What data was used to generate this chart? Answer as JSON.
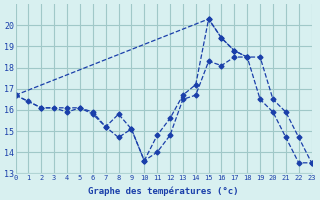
{
  "xlabel": "Graphe des températures (°c)",
  "background_color": "#d8f0f0",
  "grid_color": "#a0c8c8",
  "line_color": "#1a3faa",
  "xlim": [
    0,
    23
  ],
  "ylim": [
    13,
    21
  ],
  "yticks": [
    13,
    14,
    15,
    16,
    17,
    18,
    19,
    20
  ],
  "xticks": [
    0,
    1,
    2,
    3,
    4,
    5,
    6,
    7,
    8,
    9,
    10,
    11,
    12,
    13,
    14,
    15,
    16,
    17,
    18,
    19,
    20,
    21,
    22,
    23
  ],
  "series": [
    {
      "x": [
        0,
        1,
        2,
        3,
        4,
        5,
        6,
        7,
        8,
        9,
        10,
        11,
        12,
        13,
        14,
        15,
        16,
        17,
        18,
        19,
        20,
        21,
        22,
        23
      ],
      "y": [
        16.7,
        16.4,
        16.1,
        16.1,
        15.9,
        16.1,
        15.8,
        15.2,
        14.7,
        15.1,
        13.6,
        14.0,
        14.8,
        16.5,
        16.7,
        18.3,
        18.1,
        18.5,
        18.5,
        16.5,
        15.9,
        14.7,
        13.5,
        13.5
      ]
    },
    {
      "x": [
        0,
        2,
        4,
        5,
        6,
        7,
        8,
        9,
        10,
        11,
        12,
        13,
        14,
        15,
        16,
        17,
        18,
        19,
        20,
        21,
        22,
        23
      ],
      "y": [
        16.7,
        16.1,
        16.1,
        16.1,
        15.9,
        15.2,
        15.8,
        15.1,
        13.6,
        14.8,
        15.6,
        16.7,
        17.2,
        20.3,
        19.4,
        18.8,
        18.5,
        18.5,
        16.5,
        15.9,
        14.7,
        13.5
      ]
    },
    {
      "x": [
        0,
        15,
        16,
        17,
        18
      ],
      "y": [
        16.7,
        20.3,
        19.4,
        18.8,
        18.5
      ]
    }
  ]
}
